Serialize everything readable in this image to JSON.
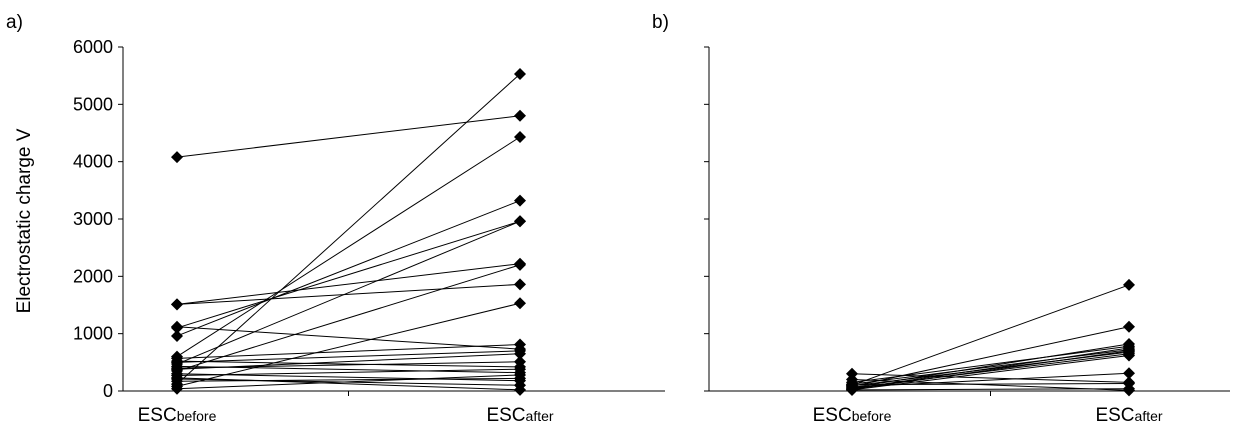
{
  "chart_data": [
    {
      "type": "line",
      "panel_label": "a)",
      "ylabel": "Electrostatic charge V",
      "ylim": [
        0,
        6000
      ],
      "yticks": [
        "0",
        "1000",
        "2000",
        "3000",
        "4000",
        "5000",
        "6000"
      ],
      "categories": [
        {
          "main": "ESC",
          "sub": "before"
        },
        {
          "main": "ESC",
          "sub": "after"
        }
      ],
      "marker": "diamond",
      "series": [
        {
          "values": [
            4080,
            4800
          ]
        },
        {
          "values": [
            1510,
            2220
          ]
        },
        {
          "values": [
            1510,
            1860
          ]
        },
        {
          "values": [
            1120,
            730
          ]
        },
        {
          "values": [
            1100,
            2960
          ]
        },
        {
          "values": [
            960,
            3320
          ]
        },
        {
          "values": [
            600,
            4430
          ]
        },
        {
          "values": [
            570,
            810
          ]
        },
        {
          "values": [
            520,
            420
          ]
        },
        {
          "values": [
            500,
            700
          ]
        },
        {
          "values": [
            470,
            2960
          ]
        },
        {
          "values": [
            430,
            320
          ]
        },
        {
          "values": [
            400,
            510
          ]
        },
        {
          "values": [
            380,
            650
          ]
        },
        {
          "values": [
            350,
            2200
          ]
        },
        {
          "values": [
            300,
            180
          ]
        },
        {
          "values": [
            270,
            380
          ]
        },
        {
          "values": [
            230,
            20
          ]
        },
        {
          "values": [
            210,
            100
          ]
        },
        {
          "values": [
            170,
            220
          ]
        },
        {
          "values": [
            120,
            5530
          ]
        },
        {
          "values": [
            80,
            1530
          ]
        },
        {
          "values": [
            40,
            280
          ]
        }
      ]
    },
    {
      "type": "line",
      "panel_label": "b)",
      "ylabel": "",
      "ylim": [
        0,
        6000
      ],
      "yticks": [],
      "categories": [
        {
          "main": "ESC",
          "sub": "before"
        },
        {
          "main": "ESC",
          "sub": "after"
        }
      ],
      "marker": "diamond",
      "series": [
        {
          "values": [
            100,
            1850
          ]
        },
        {
          "values": [
            80,
            1120
          ]
        },
        {
          "values": [
            60,
            820
          ]
        },
        {
          "values": [
            150,
            780
          ]
        },
        {
          "values": [
            40,
            750
          ]
        },
        {
          "values": [
            120,
            720
          ]
        },
        {
          "values": [
            30,
            700
          ]
        },
        {
          "values": [
            90,
            680
          ]
        },
        {
          "values": [
            50,
            650
          ]
        },
        {
          "values": [
            20,
            620
          ]
        },
        {
          "values": [
            300,
            150
          ]
        },
        {
          "values": [
            70,
            310
          ]
        },
        {
          "values": [
            110,
            130
          ]
        },
        {
          "values": [
            20,
            40
          ]
        },
        {
          "values": [
            200,
            10
          ]
        }
      ]
    }
  ]
}
